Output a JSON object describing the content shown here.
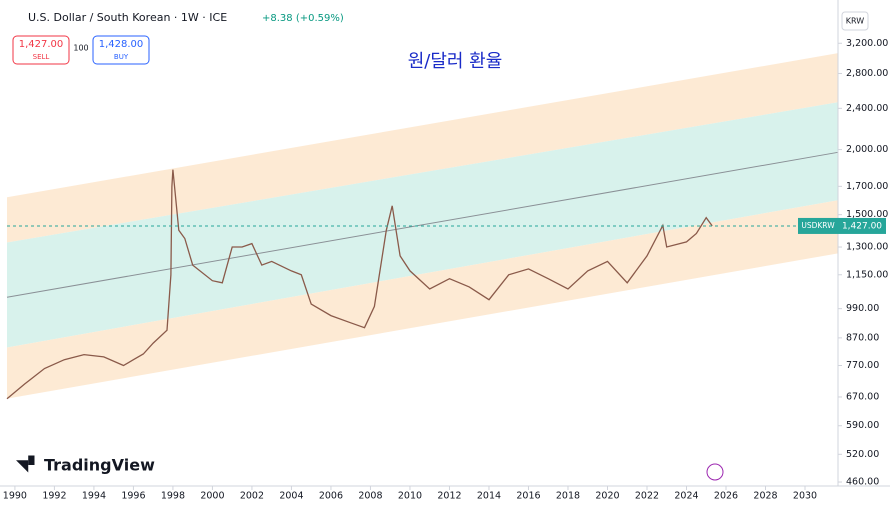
{
  "header": {
    "title": "U.S. Dollar / South Korean · 1W · ICE",
    "change": "+8.38 (+0.59%)",
    "sell_price": "1,427.00",
    "sell_label": "SELL",
    "spread": "100",
    "buy_price": "1,428.00",
    "buy_label": "BUY",
    "currency": "KRW",
    "logo": "TradingView"
  },
  "chart_data": {
    "type": "line",
    "annotation": "원/달러 환율",
    "log_scale": true,
    "xlim": [
      1989.6,
      2031.67
    ],
    "xticks": [
      1990,
      1992,
      1994,
      1996,
      1998,
      2000,
      2002,
      2004,
      2006,
      2008,
      2010,
      2012,
      2014,
      2016,
      2018,
      2020,
      2022,
      2024,
      2026,
      2028,
      2030
    ],
    "ylim": [
      452,
      3740
    ],
    "yticks": [
      {
        "value": 460,
        "label": "460.00"
      },
      {
        "value": 520,
        "label": "520.00"
      },
      {
        "value": 590,
        "label": "590.00"
      },
      {
        "value": 670,
        "label": "670.00"
      },
      {
        "value": 770,
        "label": "770.00"
      },
      {
        "value": 870,
        "label": "870.00"
      },
      {
        "value": 990,
        "label": "990.00"
      },
      {
        "value": 1150,
        "label": "1,150.00"
      },
      {
        "value": 1300,
        "label": "1,300.00"
      },
      {
        "value": 1500,
        "label": "1,500.00"
      },
      {
        "value": 1700,
        "label": "1,700.00"
      },
      {
        "value": 2000,
        "label": "2,000.00"
      },
      {
        "value": 2400,
        "label": "2,400.00"
      },
      {
        "value": 2800,
        "label": "2,800.00"
      },
      {
        "value": 3200,
        "label": "3,200.00"
      }
    ],
    "last_price": {
      "value": 1427,
      "label": "1,427.00"
    },
    "channel": {
      "x": [
        1989.6,
        2031.67
      ],
      "lines": [
        [
          1620,
          3063
        ],
        [
          1326,
          2465
        ],
        [
          1041,
          1976
        ],
        [
          834,
          1599
        ],
        [
          665,
          1264
        ]
      ],
      "outer_color": "#fde8cf",
      "inner_color": "#d4f1ea",
      "mid_color": "#8a9096"
    },
    "series": [
      {
        "name": "USDKRW",
        "color": "#8a5a4a",
        "x": [
          1989.6,
          1990.5,
          1991.5,
          1992.5,
          1993.5,
          1994.5,
          1995.5,
          1996,
          1996.5,
          1997,
          1997.7,
          1997.9,
          1997.95,
          1998.0,
          1998.3,
          1998.6,
          1999,
          2000,
          2000.5,
          2001,
          2001.5,
          2002,
          2002.5,
          2003,
          2004,
          2004.5,
          2005,
          2006,
          2007,
          2007.7,
          2008.2,
          2008.8,
          2009.1,
          2009.5,
          2010,
          2011,
          2012,
          2013,
          2014,
          2015,
          2016,
          2017,
          2018,
          2019,
          2020,
          2021,
          2022,
          2022.8,
          2023,
          2024,
          2024.5,
          2025,
          2025.3
        ],
        "values": [
          665,
          710,
          760,
          790,
          808,
          800,
          770,
          790,
          810,
          850,
          900,
          1150,
          1700,
          1830,
          1400,
          1350,
          1200,
          1120,
          1110,
          1300,
          1300,
          1320,
          1200,
          1220,
          1170,
          1150,
          1010,
          960,
          930,
          910,
          1000,
          1400,
          1560,
          1250,
          1170,
          1080,
          1130,
          1090,
          1030,
          1150,
          1180,
          1130,
          1080,
          1170,
          1220,
          1110,
          1250,
          1430,
          1300,
          1330,
          1380,
          1480,
          1427
        ]
      }
    ]
  }
}
